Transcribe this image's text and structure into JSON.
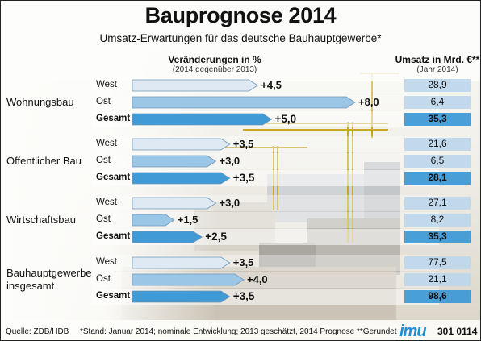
{
  "title": "Bauprognose 2014",
  "subtitle": "Umsatz-Erwartungen für das deutsche Bauhauptgewerbe*",
  "change_header": "Veränderungen in %",
  "change_subheader": "(2014 gegenüber 2013)",
  "umsatz_header": "Umsatz in Mrd. €**",
  "umsatz_subheader": "(Jahr 2014)",
  "colors": {
    "bar_light": "#dfe9f3",
    "bar_mid": "#9bc6e6",
    "bar_dark": "#3f9ad6",
    "umsatz_box": "#bcd6ec"
  },
  "chart_data": {
    "type": "bar",
    "groups": [
      {
        "name": "Wohnungsbau",
        "rows": [
          {
            "label": "West",
            "change": 4.5,
            "change_text": "+4,5",
            "umsatz": "28,9"
          },
          {
            "label": "Ost",
            "change": 8.0,
            "change_text": "+8,0",
            "umsatz": "6,4"
          },
          {
            "label": "Gesamt",
            "change": 5.0,
            "change_text": "+5,0",
            "umsatz": "35,3"
          }
        ]
      },
      {
        "name": "Öffentlicher Bau",
        "rows": [
          {
            "label": "West",
            "change": 3.5,
            "change_text": "+3,5",
            "umsatz": "21,6"
          },
          {
            "label": "Ost",
            "change": 3.0,
            "change_text": "+3,0",
            "umsatz": "6,5"
          },
          {
            "label": "Gesamt",
            "change": 3.5,
            "change_text": "+3,5",
            "umsatz": "28,1"
          }
        ]
      },
      {
        "name": "Wirtschaftsbau",
        "rows": [
          {
            "label": "West",
            "change": 3.0,
            "change_text": "+3,0",
            "umsatz": "27,1"
          },
          {
            "label": "Ost",
            "change": 1.5,
            "change_text": "+1,5",
            "umsatz": "8,2"
          },
          {
            "label": "Gesamt",
            "change": 2.5,
            "change_text": "+2,5",
            "umsatz": "35,3"
          }
        ]
      },
      {
        "name": "Bauhauptgewerbe insgesamt",
        "rows": [
          {
            "label": "West",
            "change": 3.5,
            "change_text": "+3,5",
            "umsatz": "77,5"
          },
          {
            "label": "Ost",
            "change": 4.0,
            "change_text": "+4,0",
            "umsatz": "21,1"
          },
          {
            "label": "Gesamt",
            "change": 3.5,
            "change_text": "+3,5",
            "umsatz": "98,6"
          }
        ]
      }
    ]
  },
  "footer": {
    "source": "Quelle: ZDB/HDB",
    "note": "*Stand: Januar 2014; nominale Entwicklung; 2013 geschätzt, 2014 Prognose   **Gerundet",
    "logo": "imu",
    "code": "301 0114"
  }
}
